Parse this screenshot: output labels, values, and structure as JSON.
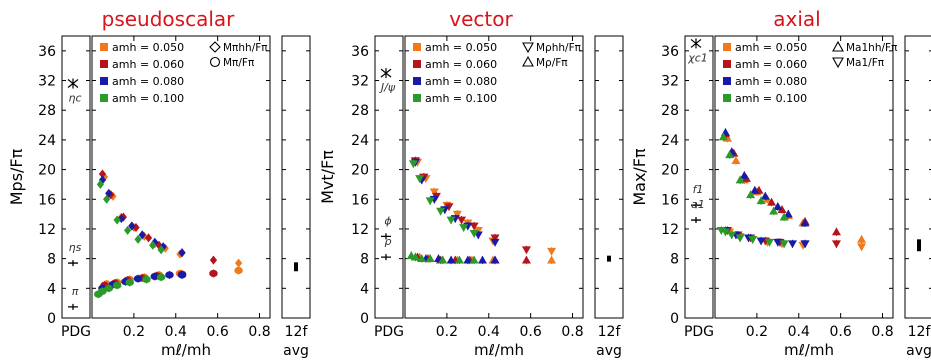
{
  "figure": {
    "x_tick_labels": [
      "0.2",
      "0.4",
      "0.6",
      "0.8"
    ],
    "pdg_label": "PDG",
    "avg_top": "12f",
    "avg_bottom": "avg",
    "xlabel": "mℓ/mh"
  },
  "chart_data": [
    {
      "type": "scatter",
      "title": "pseudoscalar",
      "ylabel": "Mps/Fπ",
      "xlabel": "mℓ/mh",
      "ylim": [
        0,
        38
      ],
      "xlim": [
        0,
        0.85
      ],
      "y_ticks": [
        0,
        4,
        8,
        12,
        16,
        20,
        24,
        28,
        32,
        36
      ],
      "legend": {
        "placement": "top-left",
        "series": [
          {
            "label": "amh = 0.050",
            "color": "#f07a1a"
          },
          {
            "label": "amh = 0.060",
            "color": "#b5141c"
          },
          {
            "label": "amh = 0.080",
            "color": "#1a1aa8"
          },
          {
            "label": "amh = 0.100",
            "color": "#2a9a2a"
          }
        ],
        "markers": [
          {
            "label": "Mπhh/Fπ",
            "shape": "diamond"
          },
          {
            "label": "Mπ/Fπ",
            "shape": "circle"
          }
        ]
      },
      "pdg": [
        {
          "label": "ηc",
          "value": 31.6
        },
        {
          "label": "ηs",
          "value": 7.4
        },
        {
          "label": "π",
          "value": 1.5
        }
      ],
      "avg": {
        "value": 6.9,
        "err": 0.6
      },
      "series": [
        {
          "name": "amh = 0.050",
          "color": "#f07a1a",
          "marker": "diamond",
          "x": [
            0.06,
            0.1,
            0.14,
            0.2,
            0.25,
            0.3,
            0.35,
            0.42,
            0.7
          ],
          "y": [
            19.0,
            16.4,
            13.6,
            12.2,
            11.0,
            10.0,
            9.4,
            8.6,
            7.4
          ]
        },
        {
          "name": "amh = 0.060",
          "color": "#b5141c",
          "marker": "diamond",
          "x": [
            0.05,
            0.09,
            0.15,
            0.21,
            0.27,
            0.32,
            0.43,
            0.58
          ],
          "y": [
            19.4,
            16.6,
            13.6,
            12.2,
            10.8,
            9.8,
            8.8,
            7.8
          ]
        },
        {
          "name": "amh = 0.080",
          "color": "#1a1aa8",
          "marker": "diamond",
          "x": [
            0.05,
            0.08,
            0.14,
            0.19,
            0.24,
            0.3,
            0.34,
            0.43
          ],
          "y": [
            18.6,
            16.8,
            13.4,
            12.4,
            11.2,
            10.2,
            9.6,
            8.8
          ]
        },
        {
          "name": "amh = 0.100",
          "color": "#2a9a2a",
          "marker": "diamond",
          "x": [
            0.04,
            0.07,
            0.12,
            0.17,
            0.22,
            0.29,
            0.33
          ],
          "y": [
            18.0,
            16.0,
            13.2,
            11.8,
            10.6,
            9.8,
            9.2
          ]
        },
        {
          "name": "amh = 0.050",
          "color": "#f07a1a",
          "marker": "circle",
          "x": [
            0.07,
            0.12,
            0.18,
            0.25,
            0.32,
            0.42,
            0.7
          ],
          "y": [
            4.6,
            4.8,
            5.2,
            5.5,
            5.8,
            6.0,
            6.4
          ]
        },
        {
          "name": "amh = 0.060",
          "color": "#b5141c",
          "marker": "circle",
          "x": [
            0.06,
            0.11,
            0.17,
            0.24,
            0.31,
            0.43,
            0.58
          ],
          "y": [
            4.4,
            4.7,
            5.1,
            5.4,
            5.7,
            5.9,
            6.0
          ]
        },
        {
          "name": "amh = 0.080",
          "color": "#1a1aa8",
          "marker": "circle",
          "x": [
            0.05,
            0.1,
            0.16,
            0.22,
            0.3,
            0.37,
            0.43
          ],
          "y": [
            4.0,
            4.5,
            4.9,
            5.3,
            5.6,
            5.8,
            5.8
          ]
        },
        {
          "name": "amh = 0.100",
          "color": "#2a9a2a",
          "marker": "circle",
          "x": [
            0.03,
            0.05,
            0.08,
            0.12,
            0.18,
            0.26,
            0.33
          ],
          "y": [
            3.2,
            3.6,
            4.0,
            4.4,
            4.8,
            5.2,
            5.5
          ]
        }
      ]
    },
    {
      "type": "scatter",
      "title": "vector",
      "ylabel": "Mvt/Fπ",
      "xlabel": "mℓ/mh",
      "ylim": [
        0,
        38
      ],
      "xlim": [
        0,
        0.85
      ],
      "y_ticks": [
        0,
        4,
        8,
        12,
        16,
        20,
        24,
        28,
        32,
        36
      ],
      "legend": {
        "placement": "top-left",
        "series": [
          {
            "label": "amh = 0.050",
            "color": "#f07a1a"
          },
          {
            "label": "amh = 0.060",
            "color": "#b5141c"
          },
          {
            "label": "amh = 0.080",
            "color": "#1a1aa8"
          },
          {
            "label": "amh = 0.100",
            "color": "#2a9a2a"
          }
        ],
        "markers": [
          {
            "label": "Mρhh/Fπ",
            "shape": "tri-down"
          },
          {
            "label": "Mρ/Fπ",
            "shape": "tri-up"
          }
        ]
      },
      "pdg": [
        {
          "label": "J/ψ",
          "value": 33.0
        },
        {
          "label": "ϕ",
          "value": 11.0
        },
        {
          "label": "ρ",
          "value": 8.2
        }
      ],
      "avg": {
        "value": 8.0,
        "err": 0.4
      },
      "series": [
        {
          "name": "amh = 0.050",
          "color": "#f07a1a",
          "marker": "tri-down",
          "x": [
            0.06,
            0.1,
            0.14,
            0.2,
            0.25,
            0.3,
            0.35,
            0.42,
            0.7
          ],
          "y": [
            21.0,
            18.8,
            17.0,
            15.2,
            14.0,
            12.8,
            11.8,
            10.4,
            9.0
          ]
        },
        {
          "name": "amh = 0.060",
          "color": "#b5141c",
          "marker": "tri-down",
          "x": [
            0.05,
            0.09,
            0.15,
            0.21,
            0.27,
            0.33,
            0.43,
            0.58
          ],
          "y": [
            21.2,
            19.0,
            16.4,
            15.0,
            13.2,
            12.4,
            10.8,
            9.2
          ]
        },
        {
          "name": "amh = 0.080",
          "color": "#1a1aa8",
          "marker": "tri-down",
          "x": [
            0.05,
            0.08,
            0.14,
            0.19,
            0.24,
            0.3,
            0.35,
            0.43
          ],
          "y": [
            21.0,
            18.6,
            16.0,
            14.6,
            13.4,
            12.4,
            11.2,
            10.2
          ]
        },
        {
          "name": "amh = 0.100",
          "color": "#2a9a2a",
          "marker": "tri-down",
          "x": [
            0.04,
            0.07,
            0.12,
            0.17,
            0.22,
            0.28,
            0.33
          ],
          "y": [
            20.8,
            18.8,
            15.8,
            14.4,
            13.2,
            12.2,
            11.4
          ]
        },
        {
          "name": "amh = 0.050",
          "color": "#f07a1a",
          "marker": "tri-up",
          "x": [
            0.07,
            0.12,
            0.18,
            0.25,
            0.32,
            0.42,
            0.7
          ],
          "y": [
            8.2,
            8.0,
            7.8,
            7.8,
            7.8,
            7.8,
            7.8
          ]
        },
        {
          "name": "amh = 0.060",
          "color": "#b5141c",
          "marker": "tri-up",
          "x": [
            0.06,
            0.11,
            0.17,
            0.24,
            0.31,
            0.43,
            0.58
          ],
          "y": [
            8.2,
            8.0,
            7.8,
            7.8,
            7.8,
            7.8,
            7.8
          ]
        },
        {
          "name": "amh = 0.080",
          "color": "#1a1aa8",
          "marker": "tri-up",
          "x": [
            0.05,
            0.1,
            0.16,
            0.22,
            0.3,
            0.37,
            0.43
          ],
          "y": [
            8.2,
            8.0,
            8.0,
            7.8,
            7.8,
            7.8,
            7.8
          ]
        },
        {
          "name": "amh = 0.100",
          "color": "#2a9a2a",
          "marker": "tri-up",
          "x": [
            0.03,
            0.05,
            0.08,
            0.12,
            0.18,
            0.26,
            0.33
          ],
          "y": [
            8.4,
            8.2,
            8.0,
            8.0,
            7.8,
            7.8,
            7.8
          ]
        }
      ]
    },
    {
      "type": "scatter",
      "title": "axial",
      "ylabel": "Max/Fπ",
      "xlabel": "mℓ/mh",
      "ylim": [
        0,
        38
      ],
      "xlim": [
        0,
        0.85
      ],
      "y_ticks": [
        0,
        4,
        8,
        12,
        16,
        20,
        24,
        28,
        32,
        36
      ],
      "legend": {
        "placement": "top-left",
        "series": [
          {
            "label": "amh = 0.050",
            "color": "#f07a1a"
          },
          {
            "label": "amh = 0.060",
            "color": "#b5141c"
          },
          {
            "label": "amh = 0.080",
            "color": "#1a1aa8"
          },
          {
            "label": "amh = 0.100",
            "color": "#2a9a2a"
          }
        ],
        "markers": [
          {
            "label": "Ma1hh/Fπ",
            "shape": "tri-up"
          },
          {
            "label": "Ma1/Fπ",
            "shape": "tri-down"
          }
        ]
      },
      "pdg": [
        {
          "label": "χc1",
          "value": 37.0
        },
        {
          "label": "f1",
          "value": 15.2
        },
        {
          "label": "a1",
          "value": 13.2
        }
      ],
      "avg": {
        "value": 9.8,
        "err": 0.8
      },
      "series": [
        {
          "name": "amh = 0.050",
          "color": "#f07a1a",
          "marker": "tri-up",
          "x": [
            0.06,
            0.1,
            0.14,
            0.2,
            0.25,
            0.3,
            0.35,
            0.42,
            0.7
          ],
          "y": [
            24.2,
            21.2,
            18.6,
            17.0,
            16.0,
            15.0,
            13.8,
            12.8,
            10.6
          ]
        },
        {
          "name": "amh = 0.060",
          "color": "#b5141c",
          "marker": "tri-up",
          "x": [
            0.05,
            0.09,
            0.15,
            0.21,
            0.27,
            0.32,
            0.43,
            0.58
          ],
          "y": [
            24.8,
            22.2,
            18.8,
            17.2,
            15.6,
            14.6,
            13.0,
            11.6
          ]
        },
        {
          "name": "amh = 0.080",
          "color": "#1a1aa8",
          "marker": "tri-up",
          "x": [
            0.05,
            0.08,
            0.14,
            0.19,
            0.24,
            0.3,
            0.35,
            0.43
          ],
          "y": [
            25.0,
            22.4,
            19.2,
            17.2,
            16.4,
            15.0,
            14.0,
            12.8
          ]
        },
        {
          "name": "amh = 0.100",
          "color": "#2a9a2a",
          "marker": "tri-up",
          "x": [
            0.04,
            0.07,
            0.12,
            0.17,
            0.22,
            0.28,
            0.33
          ],
          "y": [
            24.4,
            22.0,
            18.6,
            16.6,
            15.8,
            14.4,
            13.6
          ]
        },
        {
          "name": "amh = 0.050",
          "color": "#f07a1a",
          "marker": "tri-down",
          "x": [
            0.07,
            0.12,
            0.18,
            0.25,
            0.32,
            0.42,
            0.7
          ],
          "y": [
            11.6,
            11.0,
            10.6,
            10.2,
            10.0,
            9.8,
            9.6
          ]
        },
        {
          "name": "amh = 0.060",
          "color": "#b5141c",
          "marker": "tri-down",
          "x": [
            0.06,
            0.11,
            0.17,
            0.24,
            0.31,
            0.43,
            0.58
          ],
          "y": [
            11.8,
            11.2,
            10.8,
            10.4,
            10.2,
            10.0,
            10.0
          ]
        },
        {
          "name": "amh = 0.080",
          "color": "#1a1aa8",
          "marker": "tri-down",
          "x": [
            0.05,
            0.1,
            0.16,
            0.22,
            0.3,
            0.37,
            0.43
          ],
          "y": [
            11.8,
            11.2,
            10.8,
            10.4,
            10.2,
            10.0,
            10.0
          ]
        },
        {
          "name": "amh = 0.100",
          "color": "#2a9a2a",
          "marker": "tri-down",
          "x": [
            0.03,
            0.05,
            0.08,
            0.12,
            0.18,
            0.26,
            0.33
          ],
          "y": [
            11.8,
            11.6,
            11.2,
            10.8,
            10.6,
            10.2,
            10.0
          ]
        }
      ]
    }
  ]
}
